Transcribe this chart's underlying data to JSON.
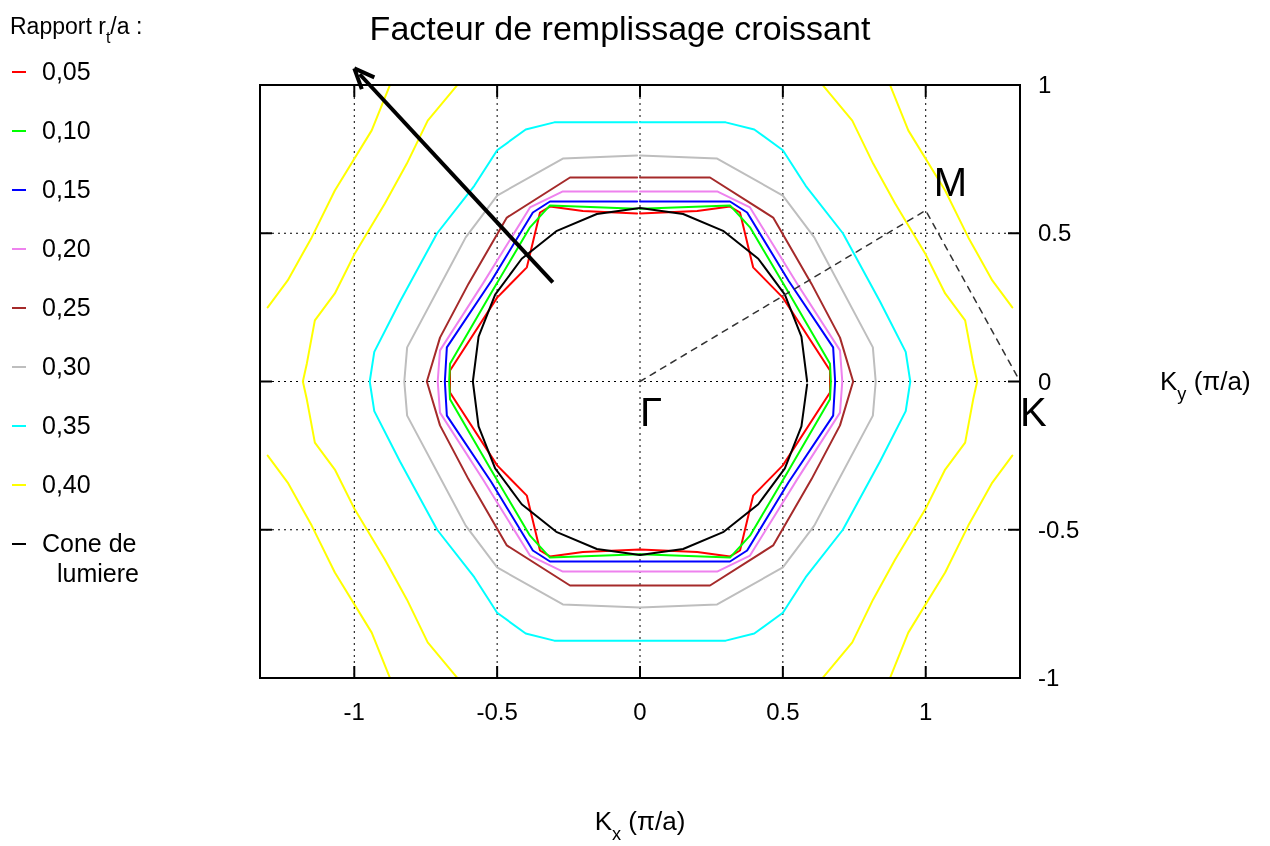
{
  "chart_data": {
    "type": "line",
    "title": "Facteur de remplissage croissant",
    "xlabel": "K$_{x}$ (π/a)",
    "ylabel": "K$_{y}$ (π/a)",
    "legend_title": "Rapport r$_{t}$/a :",
    "legend": "left",
    "grid": true,
    "xlim": [
      -1.33,
      1.33
    ],
    "ylim": [
      -1,
      1
    ],
    "xticks": [
      -1,
      -0.5,
      0,
      0.5,
      1
    ],
    "yticks": [
      -1,
      -0.5,
      0,
      0.5,
      1
    ],
    "annotations": [
      {
        "text": "Γ",
        "x": 0,
        "y": 0
      },
      {
        "text": "M",
        "x": 1,
        "y": 0.577
      },
      {
        "text": "K",
        "x": 1.33,
        "y": 0
      }
    ],
    "series": [
      {
        "name": "0,05",
        "color": "#ff0000",
        "x": [
          0,
          0.2,
          0.315,
          0.35,
          0.396,
          0.5,
          0.665,
          0.665,
          0.665,
          0.5,
          0.396,
          0.35,
          0.315,
          0.2,
          0,
          -0.2,
          -0.315,
          -0.35,
          -0.396,
          -0.5,
          -0.665,
          -0.665,
          -0.665,
          -0.5,
          -0.396,
          -0.35,
          -0.315,
          -0.2,
          -0.01
        ],
        "values": [
          0.567,
          0.575,
          0.59,
          0.57,
          0.385,
          0.283,
          0.037,
          0,
          -0.037,
          -0.283,
          -0.385,
          -0.57,
          -0.59,
          -0.575,
          -0.567,
          -0.575,
          -0.59,
          -0.57,
          -0.385,
          -0.283,
          -0.037,
          0,
          0.037,
          0.283,
          0.385,
          0.57,
          0.59,
          0.575,
          0.567
        ]
      },
      {
        "name": "0,10",
        "color": "#00ff00",
        "x": [
          0,
          0.315,
          0.385,
          0.52,
          0.665,
          0.668,
          0.665,
          0.52,
          0.385,
          0.315,
          0,
          -0.315,
          -0.385,
          -0.52,
          -0.665,
          -0.668,
          -0.665,
          -0.52,
          -0.385,
          -0.315,
          -0.01
        ],
        "values": [
          0.583,
          0.594,
          0.52,
          0.3,
          0.06,
          0,
          -0.06,
          -0.3,
          -0.52,
          -0.594,
          -0.583,
          -0.594,
          -0.52,
          -0.3,
          -0.06,
          0,
          0.06,
          0.3,
          0.52,
          0.594,
          0.583
        ]
      },
      {
        "name": "0,15",
        "color": "#0000ff",
        "x": [
          0,
          0.315,
          0.375,
          0.52,
          0.676,
          0.683,
          0.676,
          0.52,
          0.375,
          0.315,
          0,
          -0.315,
          -0.375,
          -0.52,
          -0.676,
          -0.683,
          -0.676,
          -0.52,
          -0.375,
          -0.315,
          -0.01
        ],
        "values": [
          0.607,
          0.607,
          0.57,
          0.34,
          0.115,
          0,
          -0.115,
          -0.34,
          -0.57,
          -0.607,
          -0.607,
          -0.607,
          -0.57,
          -0.34,
          -0.115,
          0,
          0.115,
          0.34,
          0.57,
          0.607,
          0.607
        ]
      },
      {
        "name": "0,20",
        "color": "#ee82ee",
        "x": [
          0,
          0.27,
          0.385,
          0.55,
          0.7,
          0.708,
          0.7,
          0.55,
          0.385,
          0.27,
          0,
          -0.27,
          -0.385,
          -0.55,
          -0.7,
          -0.708,
          -0.7,
          -0.55,
          -0.385,
          -0.27,
          -0.01
        ],
        "values": [
          0.641,
          0.641,
          0.587,
          0.33,
          0.105,
          0,
          -0.105,
          -0.33,
          -0.587,
          -0.641,
          -0.641,
          -0.641,
          -0.587,
          -0.33,
          -0.105,
          0,
          0.105,
          0.33,
          0.587,
          0.641,
          0.641
        ]
      },
      {
        "name": "0,25",
        "color": "#a52a2a",
        "x": [
          0,
          0.245,
          0.466,
          0.6,
          0.7,
          0.746,
          0.7,
          0.6,
          0.466,
          0.245,
          0,
          -0.245,
          -0.466,
          -0.6,
          -0.7,
          -0.746,
          -0.7,
          -0.6,
          -0.466,
          -0.245,
          -0.01
        ],
        "values": [
          0.688,
          0.688,
          0.553,
          0.33,
          0.148,
          0,
          -0.148,
          -0.33,
          -0.553,
          -0.688,
          -0.688,
          -0.688,
          -0.553,
          -0.33,
          -0.148,
          0,
          0.148,
          0.33,
          0.553,
          0.688,
          0.688
        ]
      },
      {
        "name": "0,30",
        "color": "#bebebe",
        "x": [
          0,
          0.27,
          0.5,
          0.61,
          0.815,
          0.825,
          0.815,
          0.61,
          0.5,
          0.27,
          0,
          -0.27,
          -0.5,
          -0.61,
          -0.815,
          -0.825,
          -0.815,
          -0.61,
          -0.5,
          -0.27,
          -0.01
        ],
        "values": [
          0.762,
          0.752,
          0.627,
          0.486,
          0.115,
          0,
          -0.115,
          -0.486,
          -0.627,
          -0.752,
          -0.762,
          -0.752,
          -0.627,
          -0.486,
          -0.115,
          0,
          0.115,
          0.486,
          0.627,
          0.752,
          0.762
        ]
      },
      {
        "name": "0,35",
        "color": "#00ffff",
        "x": [
          0,
          0.3,
          0.4,
          0.5,
          0.58,
          0.71,
          0.84,
          0.93,
          0.946,
          0.93,
          0.84,
          0.71,
          0.58,
          0.5,
          0.4,
          0.3,
          0,
          -0.3,
          -0.4,
          -0.5,
          -0.58,
          -0.71,
          -0.84,
          -0.93,
          -0.946,
          -0.93,
          -0.84,
          -0.71,
          -0.58,
          -0.5,
          -0.4,
          -0.3,
          -0.01
        ],
        "values": [
          0.874,
          0.874,
          0.85,
          0.78,
          0.66,
          0.5,
          0.27,
          0.1,
          0,
          -0.1,
          -0.27,
          -0.5,
          -0.66,
          -0.78,
          -0.85,
          -0.874,
          -0.874,
          -0.874,
          -0.85,
          -0.78,
          -0.66,
          -0.5,
          -0.27,
          -0.1,
          0,
          0.1,
          0.27,
          0.5,
          0.66,
          0.78,
          0.85,
          0.874,
          0.874
        ]
      },
      {
        "name": "0,40",
        "color": "#ffff00",
        "x": [
          -0.641,
          -0.743,
          -0.816,
          -0.893,
          -0.998,
          -1.068,
          -1.138,
          -1.166,
          -1.18,
          -1.166,
          -1.138,
          -1.068,
          -0.998,
          -0.893,
          -0.816,
          -0.743,
          -0.641,
          null,
          -0.876,
          -0.939,
          -1.068,
          -1.149,
          -1.233,
          -1.303,
          null,
          -1.303,
          -1.233,
          -1.149,
          -1.068,
          -0.939,
          -0.876,
          null,
          0.641,
          0.743,
          0.816,
          0.893,
          0.998,
          1.068,
          1.138,
          1.166,
          1.18,
          1.166,
          1.138,
          1.068,
          0.998,
          0.893,
          0.816,
          0.743,
          0.641,
          null,
          0.876,
          0.939,
          1.068,
          1.149,
          1.233,
          1.303,
          null,
          1.303,
          1.233,
          1.149,
          1.068,
          0.939,
          0.876
        ],
        "values": [
          0.998,
          0.88,
          0.735,
          0.6,
          0.432,
          0.297,
          0.206,
          0.061,
          0,
          -0.061,
          -0.206,
          -0.297,
          -0.432,
          -0.6,
          -0.735,
          -0.88,
          -0.998,
          null,
          0.998,
          0.847,
          0.644,
          0.486,
          0.341,
          0.25,
          null,
          -0.25,
          -0.341,
          -0.486,
          -0.644,
          -0.847,
          -0.998,
          null,
          0.998,
          0.88,
          0.735,
          0.6,
          0.432,
          0.297,
          0.206,
          0.061,
          0,
          -0.061,
          -0.206,
          -0.297,
          -0.432,
          -0.6,
          -0.735,
          -0.88,
          -0.998,
          null,
          0.998,
          0.847,
          0.644,
          0.486,
          0.341,
          0.25,
          null,
          -0.25,
          -0.341,
          -0.486,
          -0.644,
          -0.847,
          -0.998
        ]
      },
      {
        "name": "Cone de lumiere",
        "color": "#000000",
        "x": [
          0.585,
          0.565,
          0.507,
          0.414,
          0.293,
          0.151,
          0,
          -0.151,
          -0.293,
          -0.414,
          -0.507,
          -0.565,
          -0.585,
          -0.565,
          -0.507,
          -0.414,
          -0.293,
          -0.151,
          0,
          0.151,
          0.293,
          0.414,
          0.507,
          0.565,
          0.585
        ],
        "values": [
          0,
          0.151,
          0.293,
          0.414,
          0.507,
          0.565,
          0.585,
          0.565,
          0.507,
          0.414,
          0.293,
          0.151,
          0,
          -0.151,
          -0.293,
          -0.414,
          -0.507,
          -0.565,
          -0.585,
          -0.565,
          -0.507,
          -0.414,
          -0.293,
          -0.151,
          -0.01
        ]
      },
      {
        "type": "line",
        "color": "#333333",
        "line_style": "dashed",
        "x": [
          0,
          1,
          1.33
        ],
        "values": [
          0,
          0.577,
          0
        ]
      }
    ]
  }
}
